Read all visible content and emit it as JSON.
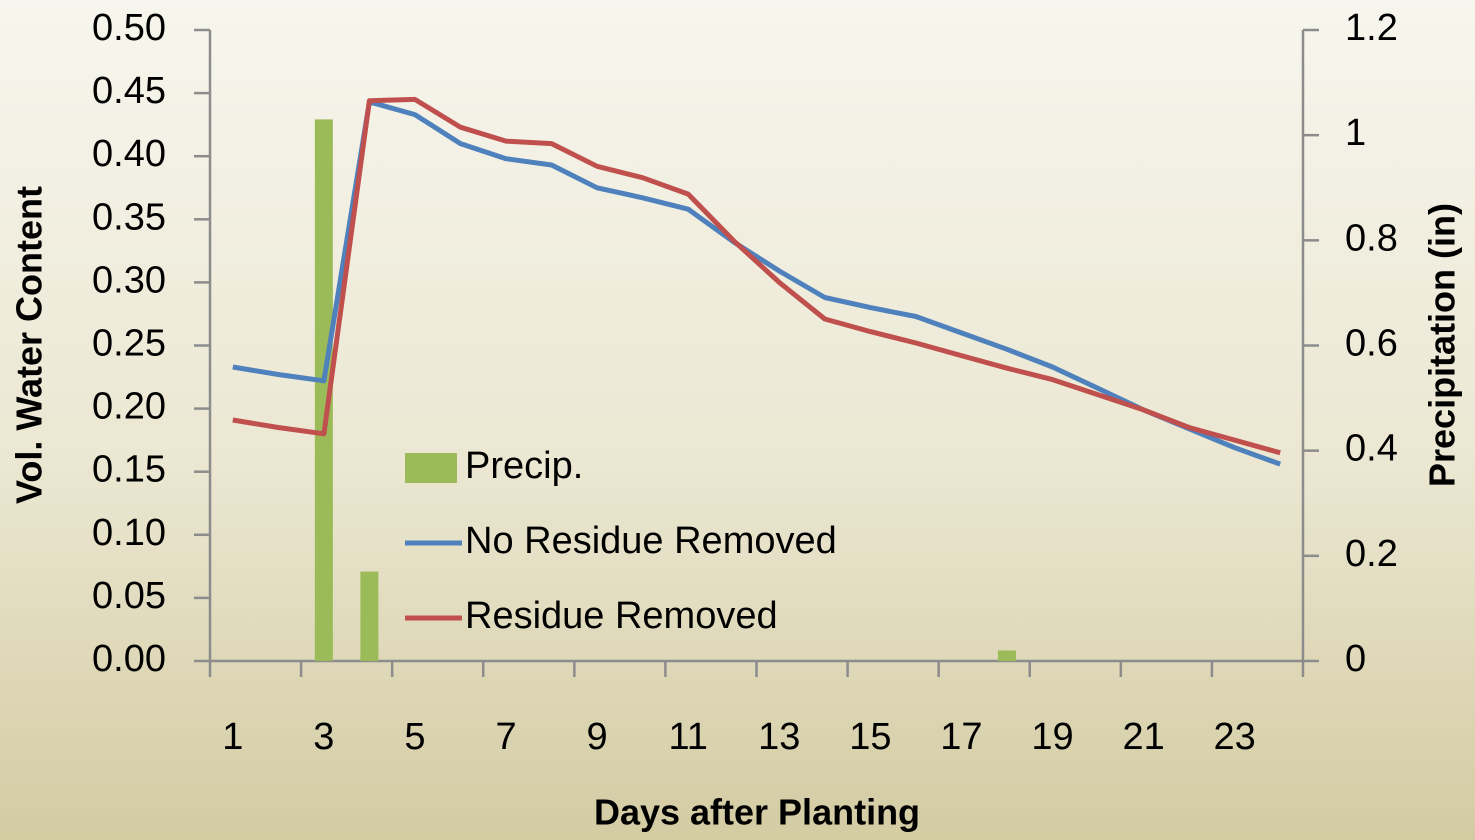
{
  "chart_data": {
    "type": "line",
    "xlabel": "Days after Planting",
    "ylabel": "Vol. Water Content",
    "y2label": "Precipitation (in)",
    "categories": [
      1,
      null,
      3,
      null,
      5,
      null,
      7,
      null,
      9,
      null,
      11,
      null,
      13,
      null,
      15,
      null,
      17,
      null,
      19,
      null,
      21,
      null,
      23,
      null
    ],
    "ylim": [
      0,
      0.5
    ],
    "yticks": [
      {
        "value": 0,
        "label": "0.00"
      },
      {
        "value": 0.05,
        "label": "0.05"
      },
      {
        "value": 0.1,
        "label": "0.10"
      },
      {
        "value": 0.15,
        "label": "0.15"
      },
      {
        "value": 0.2,
        "label": "0.20"
      },
      {
        "value": 0.25,
        "label": "0.25"
      },
      {
        "value": 0.3,
        "label": "0.30"
      },
      {
        "value": 0.35,
        "label": "0.35"
      },
      {
        "value": 0.4,
        "label": "0.40"
      },
      {
        "value": 0.45,
        "label": "0.45"
      },
      {
        "value": 0.5,
        "label": "0.50"
      }
    ],
    "y2lim": [
      0,
      1.2
    ],
    "y2ticks": [
      0,
      0.2,
      0.4,
      0.6,
      0.8,
      1,
      1.2
    ],
    "legend": "center",
    "series": [
      {
        "name": "Precip.",
        "type": "bar",
        "axis": "y2",
        "color": "#9bbb59",
        "values": [
          0,
          0,
          1.03,
          0.17,
          0,
          0,
          0,
          0,
          0,
          0,
          0,
          0,
          0,
          0,
          0,
          0,
          0,
          0.02,
          0,
          0,
          0,
          0,
          0,
          0
        ]
      },
      {
        "name": "No Residue Removed",
        "type": "line",
        "color": "#4f81bd",
        "values": [
          0.233,
          0.227,
          0.222,
          0.443,
          0.433,
          0.41,
          0.398,
          0.393,
          0.375,
          0.367,
          0.358,
          0.332,
          0.309,
          0.288,
          0.28,
          0.273,
          0.26,
          0.247,
          0.233,
          0.216,
          0.199,
          0.184,
          0.169,
          0.156
        ]
      },
      {
        "name": "Residue Removed",
        "type": "line",
        "color": "#c0504d",
        "values": [
          0.191,
          0.185,
          0.18,
          0.444,
          0.445,
          0.423,
          0.412,
          0.41,
          0.392,
          0.383,
          0.37,
          0.333,
          0.3,
          0.271,
          0.261,
          0.252,
          0.242,
          0.232,
          0.223,
          0.211,
          0.199,
          0.185,
          0.175,
          0.165
        ]
      }
    ]
  }
}
